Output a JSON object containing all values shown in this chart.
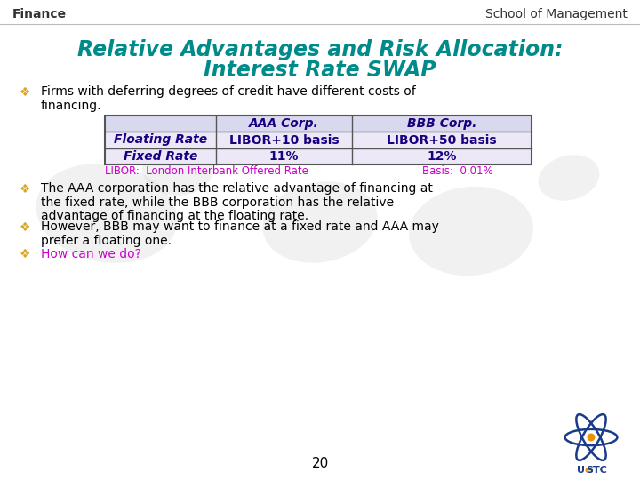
{
  "title_line1": "Relative Advantages and Risk Allocation:",
  "title_line2": "Interest Rate SWAP",
  "title_color": "#008B8B",
  "header_left": "Finance",
  "header_right": "School of Management",
  "header_color": "#333333",
  "bg_color": "#ffffff",
  "bullet_color": "#DAA520",
  "bullet_char": "❖",
  "text_color": "#000000",
  "libor_color": "#CC00CC",
  "table_header_color": "#1a0080",
  "table_row_label_color": "#1a0080",
  "table_data_color": "#1a0080",
  "table_header_bg": "#d8d8ee",
  "table_row_bg": "#ece8f8",
  "bullet1_line1": "Firms with deferring degrees of credit have different costs of",
  "bullet1_line2": "financing.",
  "bullet2_line1": "The AAA corporation has the relative advantage of financing at",
  "bullet2_line2": "the fixed rate, while the BBB corporation has the relative",
  "bullet2_line3": "advantage of financing at the floating rate.",
  "bullet3_line1": "However, BBB may want to finance at a fixed rate and AAA may",
  "bullet3_line2": "prefer a floating one.",
  "bullet4": "How can we do?",
  "bullet4_color": "#CC00CC",
  "libor_text": "LIBOR:  London Interbank Offered Rate",
  "basis_text": "Basis:  0.01%",
  "page_number": "20",
  "table_col_headers": [
    "AAA Corp.",
    "BBB Corp."
  ],
  "table_row_labels": [
    "Floating Rate",
    "Fixed Rate"
  ],
  "table_data": [
    [
      "LIBOR+10 basis",
      "LIBOR+50 basis"
    ],
    [
      "11%",
      "12%"
    ]
  ]
}
